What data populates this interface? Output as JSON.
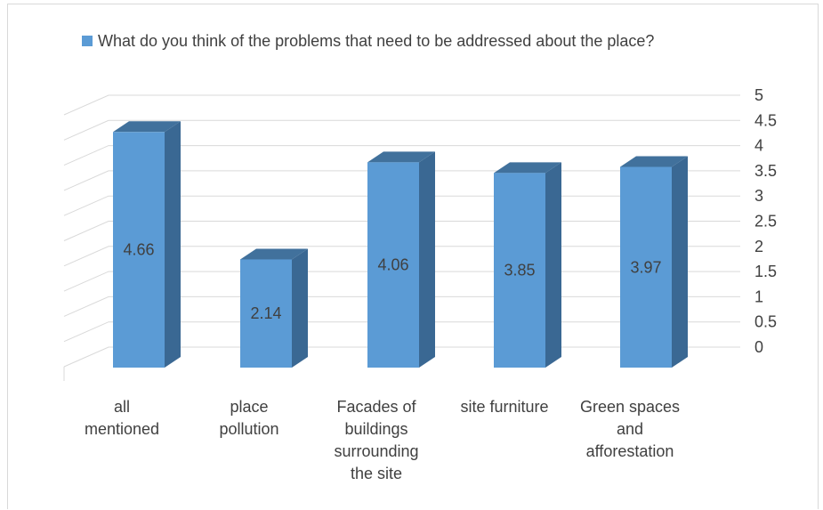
{
  "chart_data": {
    "type": "bar",
    "categories": [
      [
        "all",
        "mentioned"
      ],
      [
        "place",
        "pollution"
      ],
      [
        "Facades of",
        "buildings",
        "surrounding",
        "the site"
      ],
      [
        "site furniture"
      ],
      [
        "Green spaces",
        "and",
        "afforestation"
      ]
    ],
    "series": [
      {
        "name": "What do you think of the problems that need to be addressed about the place?",
        "values": [
          4.66,
          2.14,
          4.06,
          3.85,
          3.97
        ],
        "data_labels": [
          "4.66",
          "2.14",
          "4.06",
          "3.85",
          "3.97"
        ],
        "color": "#5b9bd5"
      }
    ],
    "yticks": [
      "0",
      "0.5",
      "1",
      "1.5",
      "2",
      "2.5",
      "3",
      "3.5",
      "4",
      "4.5",
      "5"
    ],
    "ylim": [
      0,
      5
    ],
    "grid": true,
    "legend_position": "top",
    "style": "3d-column",
    "colors": {
      "bar_front": "#5b9bd5",
      "bar_side": "#3a6893",
      "bar_top": "#41719c",
      "grid": "#d9d9d9",
      "text": "#404040"
    }
  }
}
